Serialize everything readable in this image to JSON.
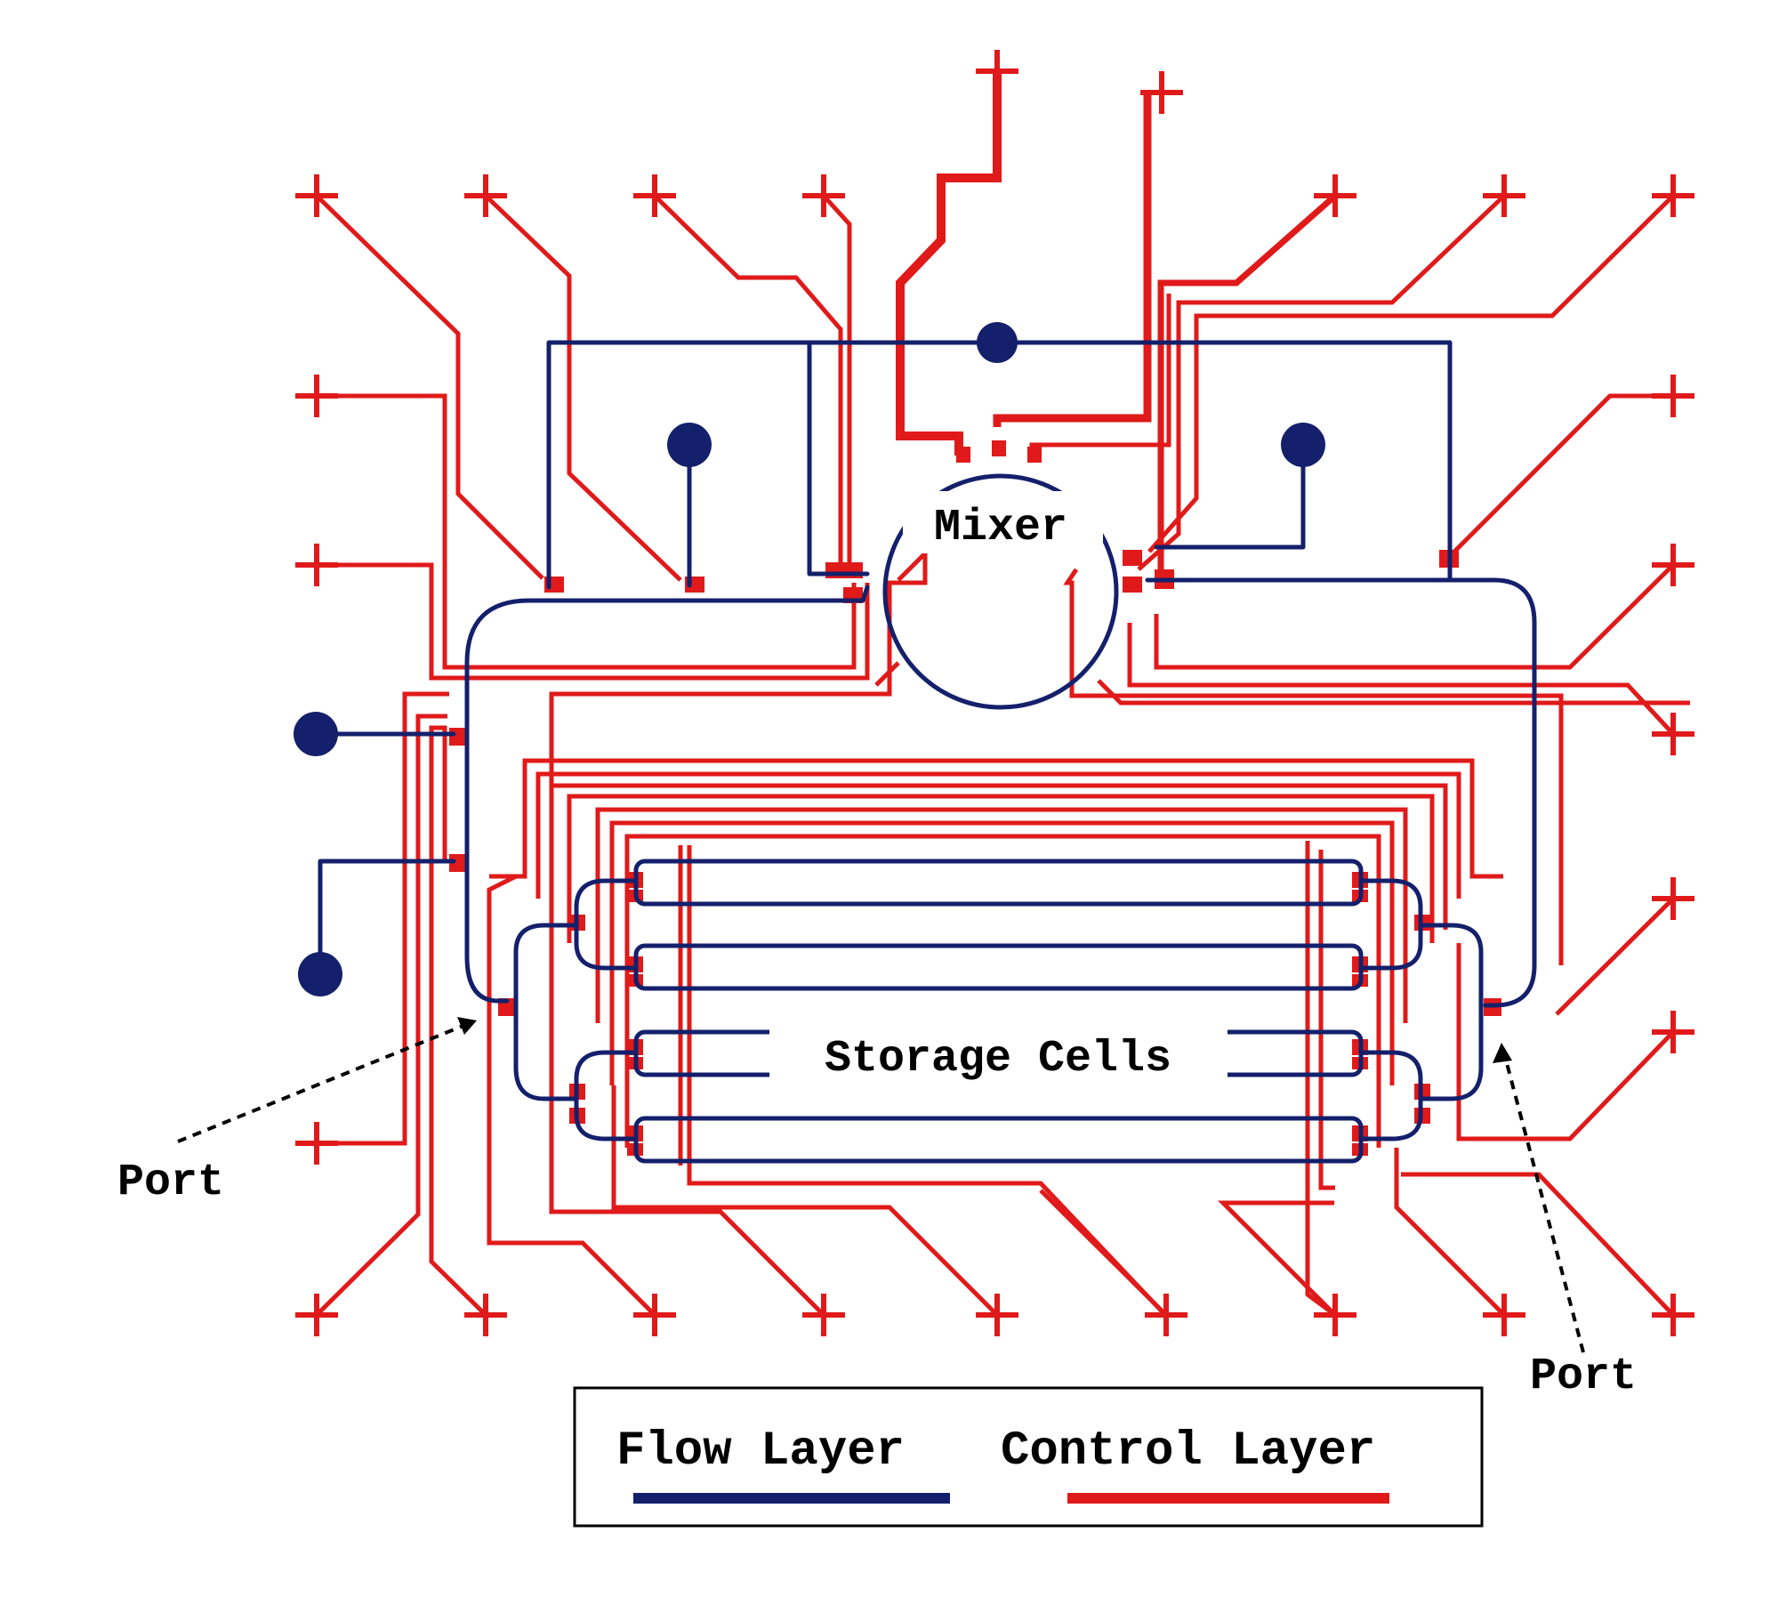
{
  "labels": {
    "mixer": "Mixer",
    "storage_cells": "Storage Cells",
    "port_left": "Port",
    "port_right": "Port"
  },
  "legend": {
    "flow_label": "Flow Layer",
    "control_label": "Control Layer"
  },
  "colors": {
    "flow": "#14206b",
    "control": "#e01a1a",
    "text": "#000000",
    "background": "#ffffff"
  }
}
